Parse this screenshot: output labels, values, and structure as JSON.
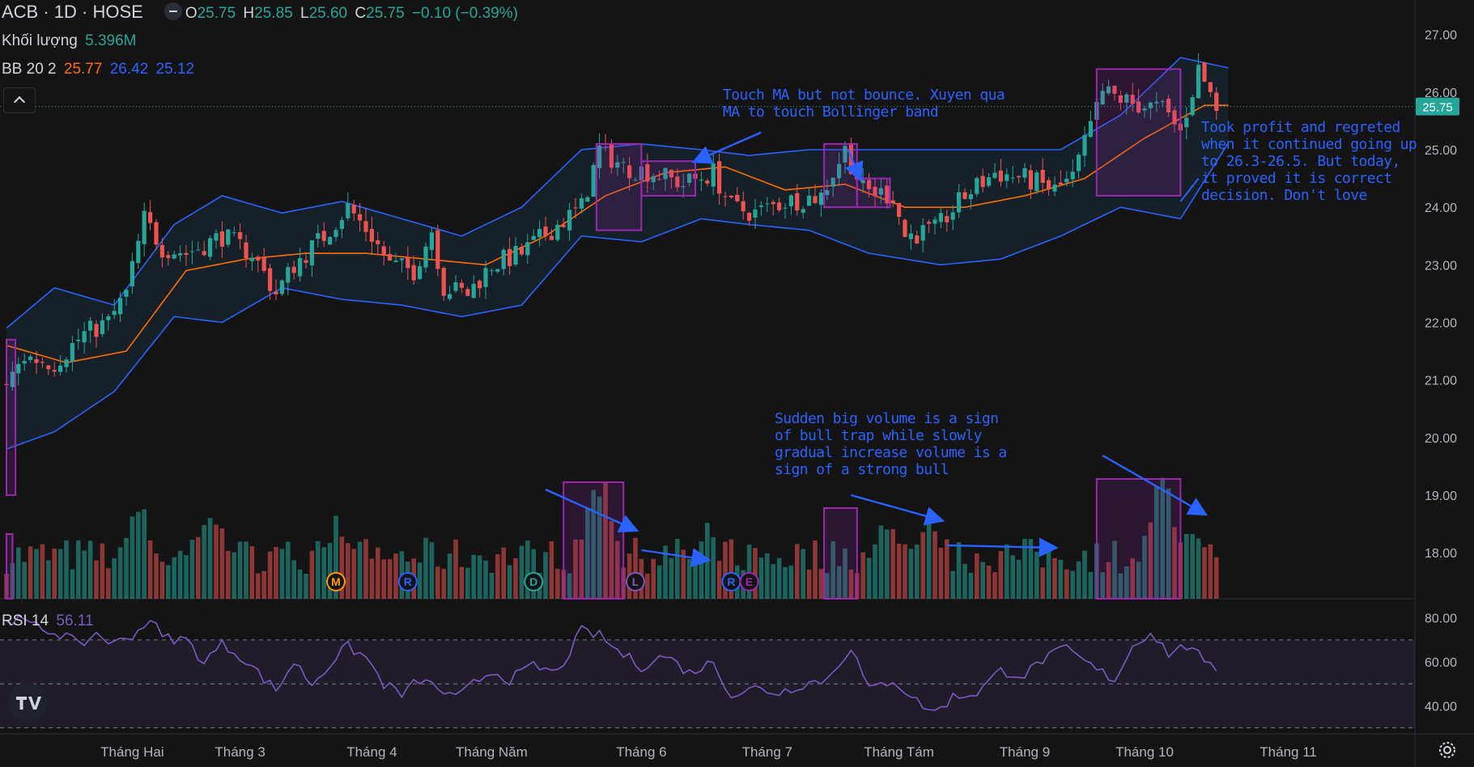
{
  "header": {
    "symbol": "ACB · 1D · HOSE",
    "o_label": "O",
    "o": "25.75",
    "h_label": "H",
    "h": "25.85",
    "l_label": "L",
    "l": "25.60",
    "c_label": "C",
    "c": "25.75",
    "change": "−0.10 (−0.39%)"
  },
  "volume_legend": {
    "label": "Khối lượng",
    "value": "5.396M"
  },
  "bb_legend": {
    "label": "BB 20 2",
    "basis": "25.77",
    "upper": "26.42",
    "lower": "25.12"
  },
  "rsi_legend": {
    "label": "RSI 14",
    "value": "56.11"
  },
  "colors": {
    "background": "#141414",
    "up": "#26a69a",
    "down": "#ef5350",
    "basis": "#ff6d00",
    "band": "#2962ff",
    "rsi": "#7e57c2",
    "annotation": "#2962ff",
    "box": "#9c27b0",
    "axis_text": "#b2b5be"
  },
  "chart_data": [
    {
      "type": "candlestick",
      "title": "",
      "ylim": [
        17.2,
        27.6
      ],
      "y_ticks": [
        18,
        19,
        20,
        21,
        22,
        23,
        24,
        25,
        26,
        27
      ],
      "y_tick_labels": [
        "18.00",
        "19.00",
        "20.00",
        "21.00",
        "22.00",
        "23.00",
        "24.00",
        "25.00",
        "26.00",
        "27.00"
      ],
      "last_price_label": "25.75",
      "last_price": 25.75,
      "x_month_labels": [
        "Tháng Hai",
        "Tháng 3",
        "Tháng 4",
        "Tháng Năm",
        "Tháng 6",
        "Tháng 7",
        "Tháng Tám",
        "Tháng 9",
        "Tháng 10",
        "Tháng 11"
      ],
      "x_month_bar_index": [
        21,
        39,
        61,
        81,
        106,
        127,
        149,
        170,
        190,
        214
      ],
      "close_path": [
        [
          0,
          20.9
        ],
        [
          3,
          21.4
        ],
        [
          8,
          21.3
        ],
        [
          13,
          21.8
        ],
        [
          17,
          22.0
        ],
        [
          20,
          22.5
        ],
        [
          23,
          23.8
        ],
        [
          26,
          23.3
        ],
        [
          30,
          23.2
        ],
        [
          36,
          23.5
        ],
        [
          41,
          23.2
        ],
        [
          45,
          22.5
        ],
        [
          48,
          23.0
        ],
        [
          53,
          23.5
        ],
        [
          57,
          24.0
        ],
        [
          61,
          23.5
        ],
        [
          64,
          23.0
        ],
        [
          68,
          22.9
        ],
        [
          71,
          23.6
        ],
        [
          73,
          22.6
        ],
        [
          77,
          22.5
        ],
        [
          81,
          23.0
        ],
        [
          86,
          23.2
        ],
        [
          92,
          23.7
        ],
        [
          96,
          24.0
        ],
        [
          99,
          25.0
        ],
        [
          103,
          24.7
        ],
        [
          108,
          24.6
        ],
        [
          113,
          24.4
        ],
        [
          118,
          24.6
        ],
        [
          121,
          24.0
        ],
        [
          125,
          23.9
        ],
        [
          130,
          24.1
        ],
        [
          136,
          24.2
        ],
        [
          140,
          25.0
        ],
        [
          143,
          24.3
        ],
        [
          148,
          24.2
        ],
        [
          150,
          23.5
        ],
        [
          155,
          23.6
        ],
        [
          160,
          24.2
        ],
        [
          165,
          24.6
        ],
        [
          170,
          24.5
        ],
        [
          175,
          24.3
        ],
        [
          178,
          24.5
        ],
        [
          183,
          26.0
        ],
        [
          188,
          25.8
        ],
        [
          193,
          25.7
        ],
        [
          196,
          25.3
        ],
        [
          199,
          26.4
        ],
        [
          202,
          25.75
        ]
      ],
      "basis_path": [
        [
          0,
          21.6
        ],
        [
          10,
          21.3
        ],
        [
          20,
          21.5
        ],
        [
          30,
          22.9
        ],
        [
          40,
          23.1
        ],
        [
          50,
          23.2
        ],
        [
          60,
          23.2
        ],
        [
          70,
          23.1
        ],
        [
          80,
          23.0
        ],
        [
          90,
          23.5
        ],
        [
          100,
          24.2
        ],
        [
          110,
          24.6
        ],
        [
          120,
          24.7
        ],
        [
          130,
          24.3
        ],
        [
          140,
          24.4
        ],
        [
          150,
          24.0
        ],
        [
          160,
          24.0
        ],
        [
          170,
          24.2
        ],
        [
          180,
          24.5
        ],
        [
          190,
          25.2
        ],
        [
          200,
          25.77
        ]
      ],
      "upper_path": [
        [
          0,
          21.9
        ],
        [
          8,
          22.6
        ],
        [
          18,
          22.3
        ],
        [
          28,
          23.7
        ],
        [
          36,
          24.2
        ],
        [
          46,
          23.9
        ],
        [
          56,
          24.1
        ],
        [
          66,
          23.8
        ],
        [
          76,
          23.5
        ],
        [
          86,
          24.0
        ],
        [
          96,
          25.0
        ],
        [
          106,
          25.1
        ],
        [
          116,
          25.0
        ],
        [
          124,
          24.9
        ],
        [
          134,
          25.0
        ],
        [
          144,
          25.0
        ],
        [
          156,
          25.0
        ],
        [
          166,
          25.0
        ],
        [
          176,
          25.0
        ],
        [
          186,
          25.6
        ],
        [
          196,
          26.6
        ],
        [
          204,
          26.42
        ]
      ],
      "lower_path": [
        [
          0,
          19.8
        ],
        [
          8,
          20.1
        ],
        [
          18,
          20.8
        ],
        [
          28,
          22.1
        ],
        [
          36,
          22.0
        ],
        [
          46,
          22.6
        ],
        [
          56,
          22.4
        ],
        [
          66,
          22.3
        ],
        [
          76,
          22.1
        ],
        [
          86,
          22.3
        ],
        [
          96,
          23.5
        ],
        [
          106,
          23.4
        ],
        [
          116,
          23.8
        ],
        [
          124,
          23.7
        ],
        [
          134,
          23.6
        ],
        [
          144,
          23.2
        ],
        [
          156,
          23.0
        ],
        [
          166,
          23.1
        ],
        [
          176,
          23.5
        ],
        [
          186,
          24.0
        ],
        [
          196,
          23.8
        ],
        [
          204,
          25.12
        ]
      ]
    },
    {
      "type": "bar",
      "title": "Khối lượng",
      "last_value": "5.396M",
      "peaks": [
        [
          22,
          0.75
        ],
        [
          34,
          0.68
        ],
        [
          55,
          0.55
        ],
        [
          99,
          0.88
        ],
        [
          117,
          0.47
        ],
        [
          147,
          0.6
        ],
        [
          154,
          0.53
        ],
        [
          193,
          0.88
        ],
        [
          198,
          0.52
        ]
      ],
      "base_level": 0.28
    },
    {
      "type": "line",
      "title": "RSI 14",
      "last_value": "56.11",
      "ylim": [
        28,
        88
      ],
      "y_ticks": [
        40,
        60,
        80
      ],
      "y_tick_labels": [
        "40.00",
        "60.00",
        "80.00"
      ],
      "bands": [
        30,
        50,
        70
      ],
      "path": [
        [
          0,
          80
        ],
        [
          3,
          78
        ],
        [
          6,
          75
        ],
        [
          10,
          72
        ],
        [
          12,
          67
        ],
        [
          15,
          73
        ],
        [
          18,
          68
        ],
        [
          22,
          74
        ],
        [
          24,
          80
        ],
        [
          26,
          71
        ],
        [
          30,
          70
        ],
        [
          33,
          60
        ],
        [
          36,
          68
        ],
        [
          39,
          63
        ],
        [
          42,
          55
        ],
        [
          45,
          47
        ],
        [
          48,
          60
        ],
        [
          51,
          50
        ],
        [
          55,
          62
        ],
        [
          57,
          67
        ],
        [
          60,
          62
        ],
        [
          63,
          50
        ],
        [
          66,
          45
        ],
        [
          69,
          52
        ],
        [
          72,
          48
        ],
        [
          75,
          43
        ],
        [
          78,
          50
        ],
        [
          81,
          56
        ],
        [
          84,
          52
        ],
        [
          88,
          58
        ],
        [
          92,
          55
        ],
        [
          96,
          74
        ],
        [
          99,
          72
        ],
        [
          102,
          65
        ],
        [
          106,
          58
        ],
        [
          110,
          63
        ],
        [
          114,
          55
        ],
        [
          118,
          60
        ],
        [
          121,
          45
        ],
        [
          125,
          48
        ],
        [
          129,
          46
        ],
        [
          133,
          50
        ],
        [
          137,
          52
        ],
        [
          141,
          67
        ],
        [
          144,
          47
        ],
        [
          148,
          52
        ],
        [
          152,
          42
        ],
        [
          155,
          37
        ],
        [
          158,
          44
        ],
        [
          162,
          46
        ],
        [
          166,
          56
        ],
        [
          170,
          54
        ],
        [
          173,
          61
        ],
        [
          177,
          66
        ],
        [
          181,
          58
        ],
        [
          185,
          52
        ],
        [
          188,
          67
        ],
        [
          191,
          74
        ],
        [
          194,
          64
        ],
        [
          198,
          68
        ],
        [
          200,
          58
        ],
        [
          203,
          56
        ]
      ]
    }
  ],
  "annotations": {
    "ma_note": "Touch MA but not bounce. Xuyen qua MA to touch  Bollinger band",
    "profit_note": "Took profit and regreted when it continued going up to 26.3-26.5. But today, it proved it is correct decision. Don't love",
    "volume_note": "Sudden big volume is a sign of bull trap while slowly gradual increase volume is a sign of a strong bull"
  },
  "event_markers": [
    "M",
    "R",
    "D",
    "L",
    "R",
    "E"
  ]
}
